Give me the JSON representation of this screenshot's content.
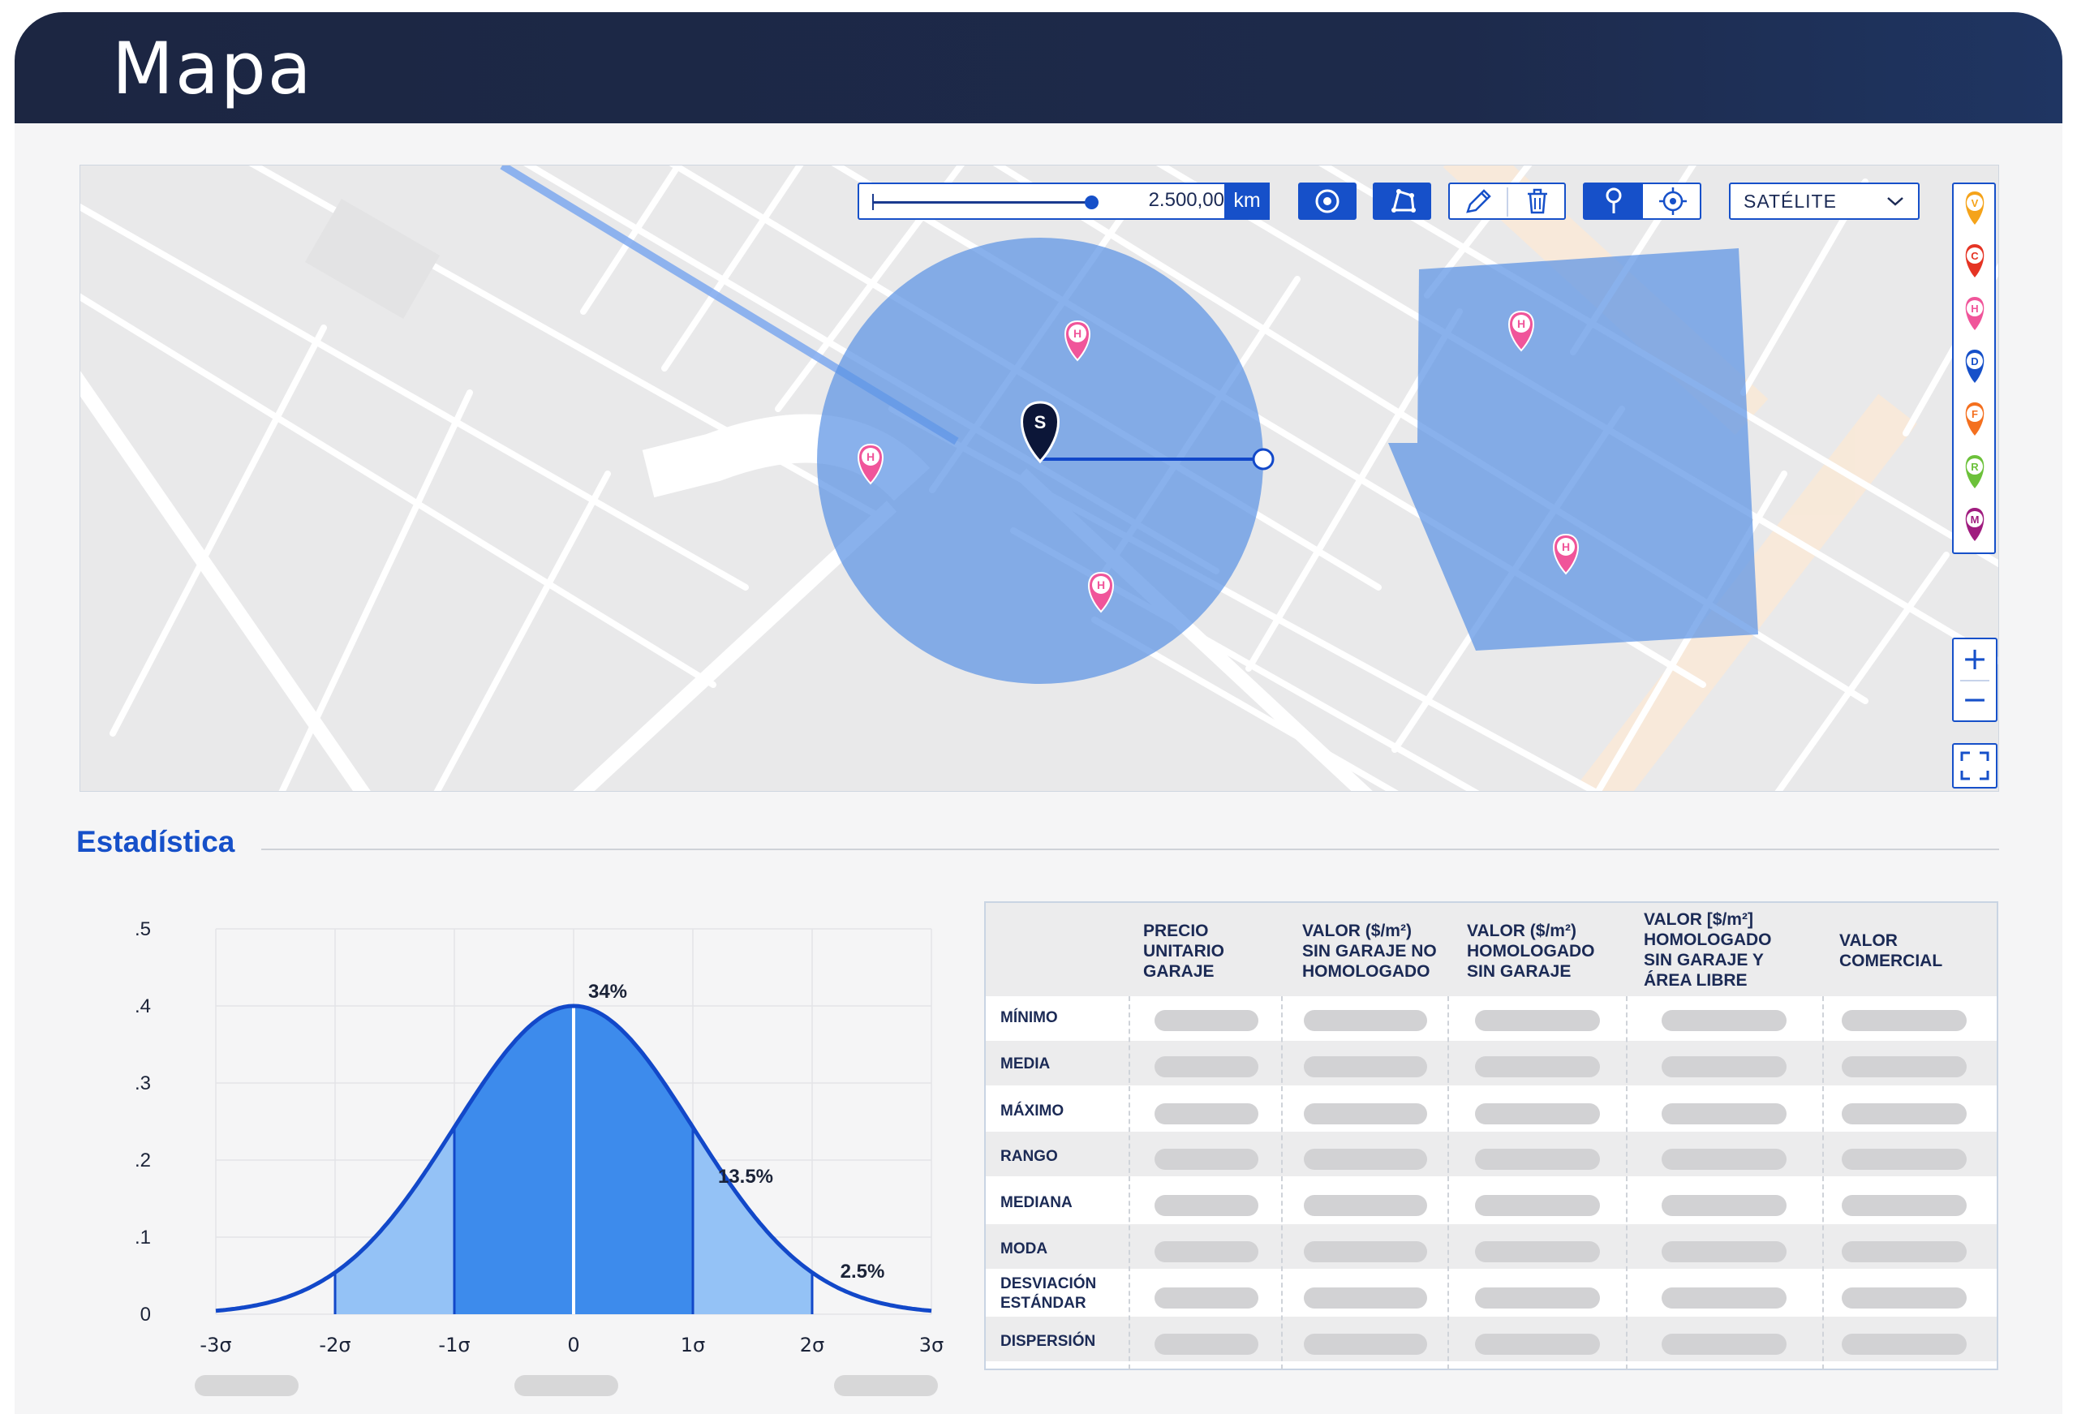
{
  "header": {
    "title": "Mapa"
  },
  "map": {
    "distance": {
      "value": "2.500,00",
      "unit": "km",
      "fill_fraction": 0.94
    },
    "tools": {
      "circle_icon": "circle-target-icon",
      "polygon_icon": "polygon-icon",
      "edit_icon": "pencil-icon",
      "delete_icon": "trash-icon",
      "pin_icon": "map-pin-icon",
      "locate_icon": "crosshair-icon"
    },
    "layer": {
      "selected": "SATÉLITE"
    },
    "subject_marker": "S",
    "markers": [
      "H",
      "H",
      "H",
      "H",
      "H"
    ],
    "legend": [
      {
        "letter": "V",
        "color": "#f5a31a"
      },
      {
        "letter": "C",
        "color": "#e53424"
      },
      {
        "letter": "H",
        "color": "#f0559a"
      },
      {
        "letter": "D",
        "color": "#1650c9"
      },
      {
        "letter": "F",
        "color": "#f4701f"
      },
      {
        "letter": "R",
        "color": "#6cc13a"
      },
      {
        "letter": "M",
        "color": "#a01c7f"
      }
    ],
    "zoom": {
      "in": "+",
      "out": "−"
    }
  },
  "stats": {
    "title": "Estadística"
  },
  "chart_data": {
    "type": "area",
    "title": "",
    "ylim": [
      0,
      0.5
    ],
    "y_ticks": [
      ".5",
      ".4",
      ".3",
      ".2",
      ".1",
      "0"
    ],
    "x_ticks": [
      "-3σ",
      "-2σ",
      "-1σ",
      "0",
      "1σ",
      "2σ",
      "3σ"
    ],
    "series": [
      {
        "distribution": "normal",
        "mean": 0,
        "sd": 1,
        "peak": 0.4
      }
    ],
    "bands": [
      {
        "from": -2,
        "to": -1,
        "shade": "light"
      },
      {
        "from": -1,
        "to": 0,
        "shade": "dark"
      },
      {
        "from": 0,
        "to": 1,
        "shade": "dark"
      },
      {
        "from": 1,
        "to": 2,
        "shade": "light"
      }
    ],
    "annotations": [
      "34%",
      "13.5%",
      "2.5%"
    ],
    "colors": {
      "line": "#1248c9",
      "dark": "#3d8bec",
      "light": "#94c2f6"
    }
  },
  "table": {
    "columns": [
      [
        "PRECIO",
        "UNITARIO",
        "GARAJE"
      ],
      [
        "VALOR ($/m²)",
        "SIN GARAJE NO",
        "HOMOLOGADO"
      ],
      [
        "VALOR ($/m²)",
        "HOMOLOGADO",
        "SIN GARAJE"
      ],
      [
        "VALOR [$/m²]",
        "HOMOLOGADO",
        "SIN GARAJE Y",
        "ÁREA LIBRE"
      ],
      [
        "VALOR",
        "COMERCIAL"
      ]
    ],
    "rows": [
      [
        "MÍNIMO"
      ],
      [
        "MEDIA"
      ],
      [
        "MÁXIMO"
      ],
      [
        "RANGO"
      ],
      [
        "MEDIANA"
      ],
      [
        "MODA"
      ],
      [
        "DESVIACIÓN",
        "ESTÁNDAR"
      ],
      [
        "DISPERSIÓN"
      ]
    ]
  }
}
